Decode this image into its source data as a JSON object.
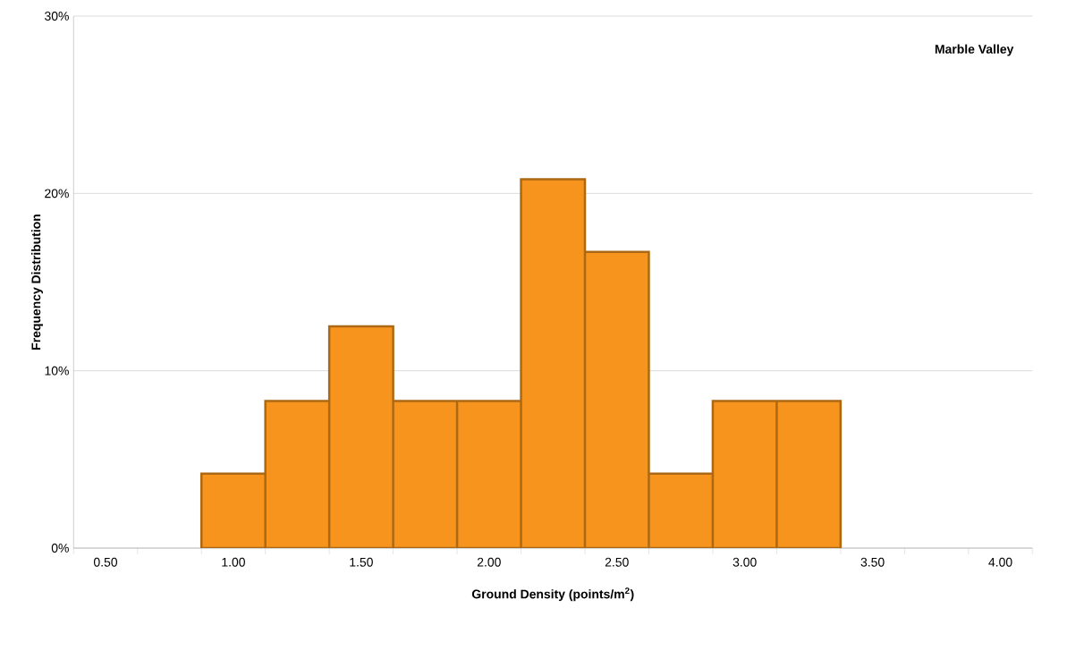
{
  "chart_data": {
    "type": "bar",
    "categories": [
      "0.50",
      null,
      "1.00",
      null,
      "1.50",
      null,
      "2.00",
      null,
      "2.50",
      null,
      "3.00",
      null,
      "3.50",
      null,
      "4.00"
    ],
    "values": [
      null,
      null,
      4.2,
      8.3,
      12.5,
      8.3,
      8.3,
      20.8,
      16.7,
      4.2,
      8.3,
      8.3,
      null,
      null,
      null
    ],
    "color": "#f7941d",
    "xlabel": "Ground Density (points/m$^{2}$)",
    "ylabel": "Frequency Distribution",
    "annotations": [
      "Marble Valley"
    ],
    "ylim": [
      0,
      30
    ],
    "yticks": [
      {
        "value": 0,
        "label": "0%"
      },
      {
        "value": 10,
        "label": "10%"
      },
      {
        "value": 20,
        "label": "20%"
      },
      {
        "value": 30,
        "label": "30%"
      }
    ],
    "grid": "y"
  }
}
